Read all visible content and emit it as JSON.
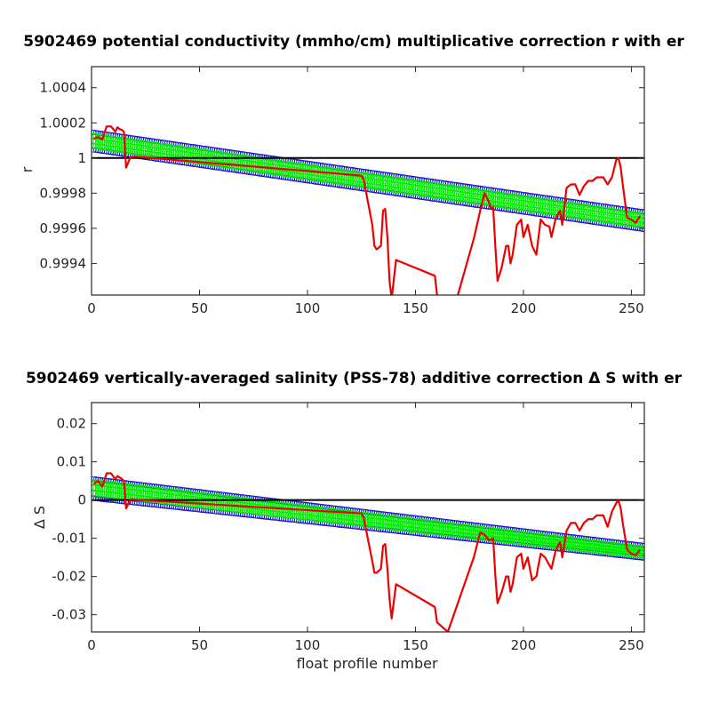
{
  "chart_data": [
    {
      "type": "line",
      "title": "5902469 potential conductivity (mmho/cm) multiplicative correction r with er",
      "xlabel": "",
      "ylabel": "r",
      "xlim": [
        0,
        256
      ],
      "ylim": [
        0.99922,
        1.00052
      ],
      "xticks": [
        0,
        50,
        100,
        150,
        200,
        250
      ],
      "xtick_labels": [
        "0",
        "50",
        "100",
        "150",
        "200",
        "250"
      ],
      "yticks": [
        0.9994,
        0.9996,
        0.9998,
        1.0,
        1.0002,
        1.0004
      ],
      "ytick_labels": [
        "0.9994",
        "0.9996",
        "0.9998",
        "1",
        "1.0002",
        "1.0004"
      ],
      "grid": false,
      "reference_line": 1.0,
      "series": [
        {
          "role": "error-band",
          "color": "#0000cc",
          "x": [
            0,
            256
          ],
          "upper": [
            1.000148,
            0.999693
          ],
          "lower": [
            1.000048,
            0.999593
          ]
        },
        {
          "role": "fit",
          "color": "#00ee00",
          "x": [
            0,
            256
          ],
          "y": [
            1.000098,
            0.999643
          ]
        },
        {
          "role": "measured",
          "color": "#ee0000",
          "x": [
            1,
            3,
            5,
            7,
            9,
            11,
            12,
            13,
            14,
            15,
            16,
            18,
            20,
            125,
            126,
            130,
            131,
            132,
            134,
            135,
            136,
            137,
            138,
            139,
            141,
            159,
            160,
            168,
            177,
            180,
            182,
            184,
            185,
            186,
            187,
            188,
            190,
            192,
            193,
            194,
            195,
            197,
            199,
            200,
            202,
            204,
            206,
            208,
            210,
            212,
            213,
            215,
            217,
            218,
            220,
            222,
            224,
            226,
            228,
            230,
            232,
            234,
            237,
            239,
            241,
            243,
            244,
            245,
            246,
            248,
            250,
            252,
            254
          ],
          "y": [
            1.00011,
            1.00012,
            1.000105,
            1.00018,
            1.00018,
            1.00015,
            1.000175,
            1.000165,
            1.00016,
            1.00015,
            0.999945,
            1.000005,
            1.000008,
            0.9999,
            0.99988,
            0.99962,
            0.9995,
            0.99948,
            0.9995,
            0.9997,
            0.99971,
            0.99955,
            0.9993,
            0.9992,
            0.99942,
            0.99933,
            0.99922,
            0.99915,
            0.99954,
            0.9997,
            0.9998,
            0.99975,
            0.99971,
            0.99972,
            0.99949,
            0.9993,
            0.99938,
            0.9995,
            0.9995,
            0.9994,
            0.99945,
            0.99962,
            0.99965,
            0.99955,
            0.99962,
            0.9995,
            0.99945,
            0.99965,
            0.99962,
            0.99961,
            0.99955,
            0.99966,
            0.9997,
            0.99962,
            0.99983,
            0.99985,
            0.99985,
            0.99979,
            0.99984,
            0.99987,
            0.99987,
            0.99989,
            0.99989,
            0.99985,
            0.99989,
            0.99999,
            1.0,
            0.99995,
            0.99985,
            0.99966,
            0.99965,
            0.99963,
            0.99967
          ]
        }
      ]
    },
    {
      "type": "line",
      "title": "5902469 vertically-averaged salinity (PSS-78) additive correction Δ S with er",
      "xlabel": "float profile number",
      "ylabel": "Δ S",
      "xlim": [
        0,
        256
      ],
      "ylim": [
        -0.0345,
        0.0255
      ],
      "xticks": [
        0,
        50,
        100,
        150,
        200,
        250
      ],
      "xtick_labels": [
        "0",
        "50",
        "100",
        "150",
        "200",
        "250"
      ],
      "yticks": [
        -0.03,
        -0.02,
        -0.01,
        0,
        0.01,
        0.02
      ],
      "ytick_labels": [
        "-0.03",
        "-0.02",
        "-0.01",
        "0",
        "0.01",
        "0.02"
      ],
      "grid": false,
      "reference_line": 0,
      "series": [
        {
          "role": "error-band",
          "color": "#0000cc",
          "x": [
            0,
            256
          ],
          "upper": [
            0.0056,
            -0.0119
          ],
          "lower": [
            0.0005,
            -0.0152
          ]
        },
        {
          "role": "fit",
          "color": "#00ee00",
          "x": [
            0,
            256
          ],
          "y": [
            0.0033,
            -0.0137
          ]
        },
        {
          "role": "measured",
          "color": "#ee0000",
          "x": [
            1,
            3,
            5,
            7,
            9,
            11,
            12,
            13,
            14,
            15,
            16,
            18,
            20,
            125,
            126,
            130,
            131,
            132,
            134,
            135,
            136,
            137,
            138,
            139,
            141,
            159,
            160,
            165,
            177,
            180,
            182,
            184,
            185,
            186,
            187,
            188,
            190,
            192,
            193,
            194,
            195,
            197,
            199,
            200,
            202,
            204,
            206,
            208,
            210,
            212,
            213,
            215,
            217,
            218,
            220,
            222,
            224,
            226,
            228,
            230,
            232,
            234,
            237,
            239,
            241,
            243,
            244,
            245,
            246,
            248,
            250,
            252,
            254
          ],
          "y": [
            0.0042,
            0.005,
            0.0035,
            0.007,
            0.007,
            0.0055,
            0.0063,
            0.0059,
            0.0056,
            0.005,
            -0.0022,
            0.0002,
            0.0001,
            -0.0035,
            -0.0045,
            -0.016,
            -0.019,
            -0.019,
            -0.018,
            -0.012,
            -0.0115,
            -0.018,
            -0.026,
            -0.031,
            -0.022,
            -0.028,
            -0.032,
            -0.0345,
            -0.015,
            -0.0085,
            -0.009,
            -0.0105,
            -0.0104,
            -0.01,
            -0.02,
            -0.027,
            -0.024,
            -0.02,
            -0.02,
            -0.024,
            -0.022,
            -0.015,
            -0.014,
            -0.018,
            -0.015,
            -0.021,
            -0.02,
            -0.014,
            -0.015,
            -0.017,
            -0.018,
            -0.013,
            -0.011,
            -0.015,
            -0.008,
            -0.006,
            -0.006,
            -0.008,
            -0.006,
            -0.005,
            -0.005,
            -0.004,
            -0.004,
            -0.007,
            -0.003,
            -0.0008,
            -0.0001,
            -0.002,
            -0.006,
            -0.013,
            -0.014,
            -0.0145,
            -0.013
          ]
        }
      ]
    }
  ]
}
